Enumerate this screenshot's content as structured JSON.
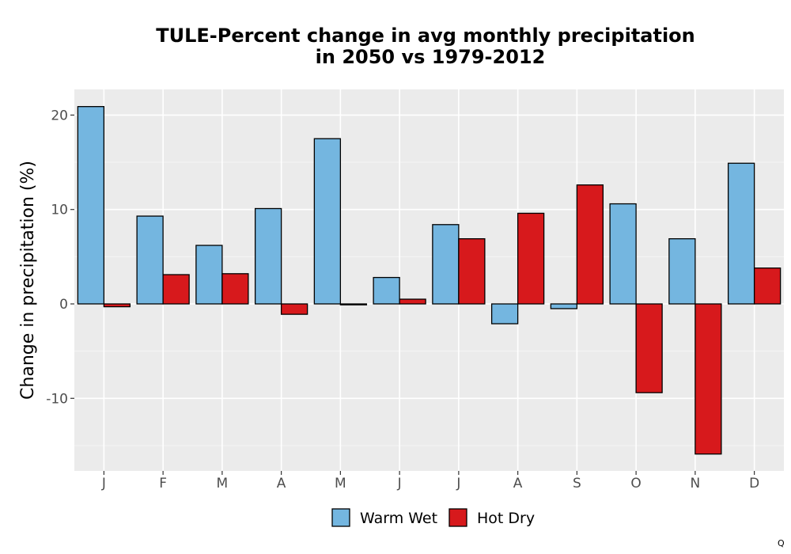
{
  "chart_data": {
    "type": "bar",
    "title_line1": "TULE-Percent change in avg monthly precipitation",
    "title_line2": "in 2050 vs 1979-2012",
    "xlabel": "",
    "ylabel": "Change in precipitation (%)",
    "categories": [
      "J",
      "F",
      "M",
      "A",
      "M",
      "J",
      "J",
      "A",
      "S",
      "O",
      "N",
      "D"
    ],
    "ylim": [
      -18,
      23
    ],
    "yticks": [
      -10,
      0,
      10,
      20
    ],
    "series": [
      {
        "name": "Warm Wet",
        "color": "#74b6e0",
        "values": [
          20.9,
          9.3,
          6.2,
          10.1,
          17.5,
          2.8,
          8.4,
          -2.1,
          -0.5,
          10.6,
          6.9,
          14.9
        ]
      },
      {
        "name": "Hot Dry",
        "color": "#d7191c",
        "values": [
          -0.3,
          3.1,
          3.2,
          -1.1,
          -0.1,
          0.5,
          6.9,
          9.6,
          12.6,
          -9.4,
          -15.9,
          3.8
        ]
      }
    ],
    "grid": true,
    "legend_position": "bottom",
    "corner_text": "Q"
  }
}
